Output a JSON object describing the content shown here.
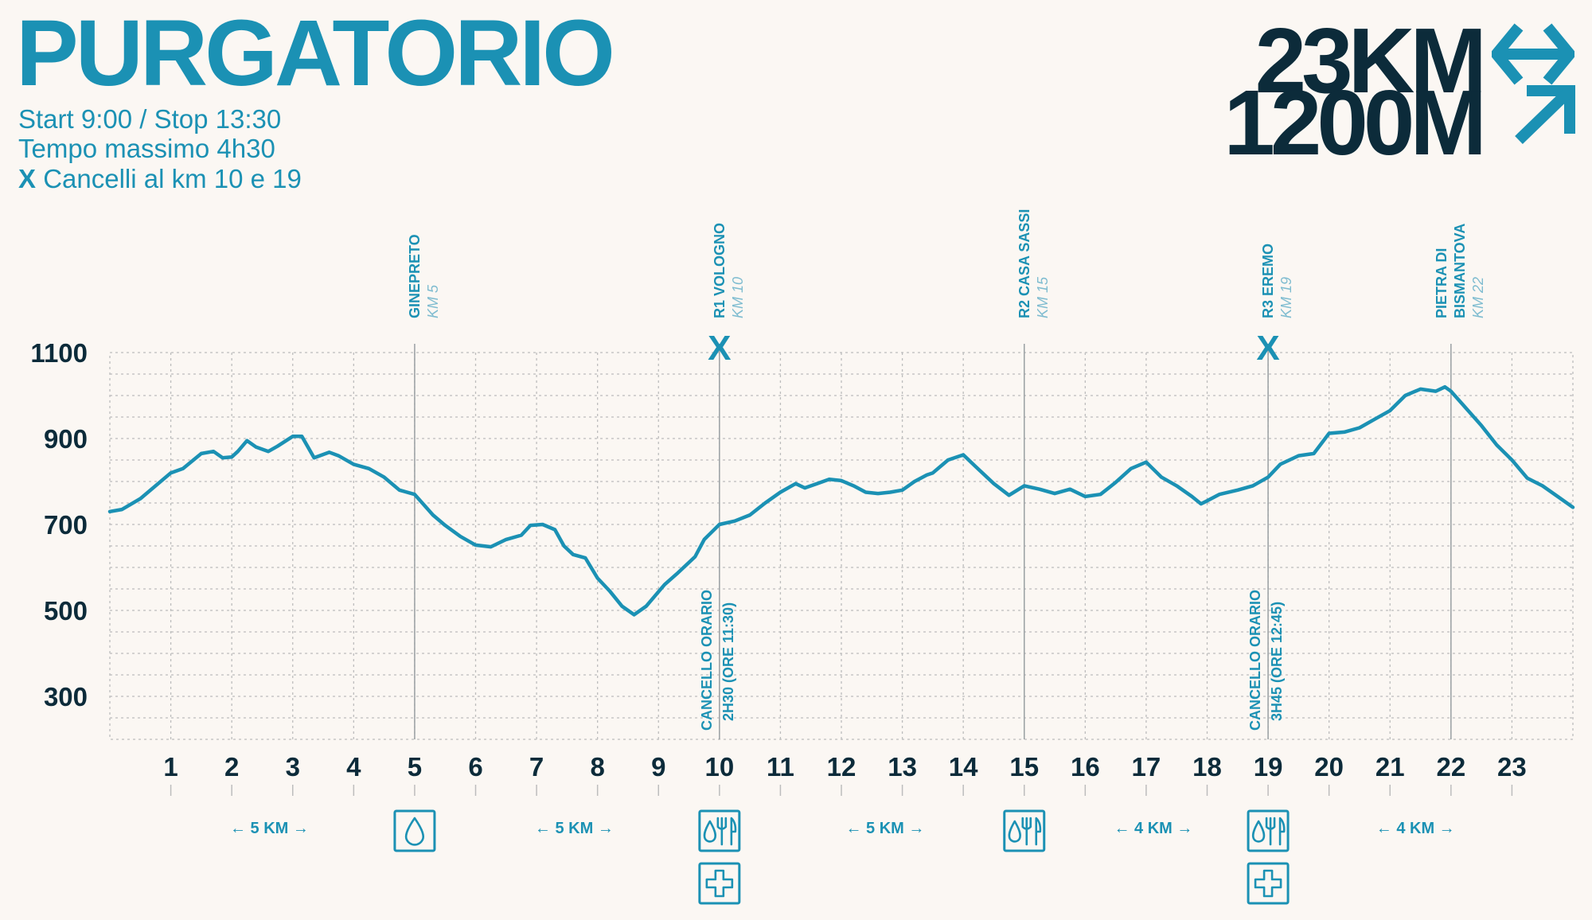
{
  "header": {
    "title": "PURGATORIO",
    "start_stop": "Start 9:00 / Stop 13:30",
    "max_time": "Tempo massimo 4h30",
    "gates_mark": "X",
    "gates_text": "Cancelli al km 10 e 19",
    "distance": "23KM",
    "elevation_gain": "1200M"
  },
  "colors": {
    "accent": "#1b91b4",
    "dark": "#0c2b3a",
    "grid": "#bdbdbd",
    "background": "#fbf7f3"
  },
  "icons": {
    "distance": "double-arrow-icon",
    "elevation": "arrow-up-right-icon"
  },
  "chart_data": {
    "type": "line",
    "title": "",
    "xlabel": "",
    "ylabel": "",
    "xlim": [
      0,
      24
    ],
    "ylim": [
      200,
      1100
    ],
    "y_ticks": [
      1100,
      900,
      700,
      500,
      300
    ],
    "x_ticks": [
      1,
      2,
      3,
      4,
      5,
      6,
      7,
      8,
      9,
      10,
      11,
      12,
      13,
      14,
      15,
      16,
      17,
      18,
      19,
      20,
      21,
      22,
      23
    ],
    "grid": true,
    "series": [
      {
        "name": "",
        "x": [
          0,
          0.2,
          0.5,
          1.0,
          1.2,
          1.5,
          1.7,
          1.85,
          2.0,
          2.1,
          2.25,
          2.4,
          2.6,
          2.75,
          3.0,
          3.15,
          3.35,
          3.6,
          3.75,
          4.0,
          4.25,
          4.5,
          4.75,
          5.0,
          5.3,
          5.5,
          5.75,
          6.0,
          6.25,
          6.5,
          6.75,
          6.9,
          7.1,
          7.3,
          7.45,
          7.6,
          7.8,
          8.0,
          8.2,
          8.4,
          8.6,
          8.8,
          9.1,
          9.3,
          9.6,
          9.75,
          10.0,
          10.25,
          10.5,
          10.75,
          11.0,
          11.25,
          11.4,
          11.6,
          11.8,
          12.0,
          12.2,
          12.4,
          12.6,
          12.8,
          13.0,
          13.2,
          13.4,
          13.5,
          13.75,
          14.0,
          14.2,
          14.5,
          14.75,
          15.0,
          15.25,
          15.5,
          15.75,
          16.0,
          16.25,
          16.5,
          16.75,
          17.0,
          17.25,
          17.5,
          17.75,
          17.9,
          18.0,
          18.2,
          18.5,
          18.75,
          19.0,
          19.2,
          19.5,
          19.75,
          20.0,
          20.25,
          20.5,
          20.75,
          21.0,
          21.25,
          21.5,
          21.75,
          21.9,
          22.0,
          22.25,
          22.5,
          22.75,
          23.0,
          23.25,
          23.5,
          23.75,
          24.0
        ],
        "values": [
          730,
          735,
          760,
          820,
          830,
          865,
          870,
          855,
          857,
          870,
          895,
          880,
          870,
          882,
          905,
          905,
          855,
          868,
          860,
          840,
          830,
          810,
          780,
          770,
          722,
          698,
          672,
          652,
          648,
          665,
          675,
          698,
          700,
          688,
          650,
          630,
          622,
          575,
          545,
          510,
          490,
          510,
          560,
          585,
          625,
          665,
          700,
          708,
          722,
          750,
          775,
          795,
          785,
          795,
          805,
          802,
          790,
          775,
          772,
          775,
          780,
          800,
          815,
          820,
          850,
          862,
          835,
          795,
          768,
          790,
          782,
          772,
          782,
          765,
          770,
          798,
          830,
          845,
          810,
          790,
          765,
          748,
          755,
          770,
          780,
          790,
          810,
          840,
          860,
          865,
          912,
          915,
          925,
          945,
          965,
          1000,
          1015,
          1010,
          1020,
          1010,
          970,
          930,
          885,
          850,
          808,
          790,
          765,
          740
        ]
      }
    ],
    "waypoints": [
      {
        "km": 5,
        "name": "GINEPRETO",
        "sub": "KM 5",
        "gate": false,
        "lines": 1
      },
      {
        "km": 10,
        "name": "R1 VOLOGNO",
        "sub": "KM 10",
        "gate": true,
        "lines": 1
      },
      {
        "km": 15,
        "name": "R2 CASA SASSI",
        "sub": "KM 15",
        "gate": false,
        "lines": 1
      },
      {
        "km": 19,
        "name": "R3 EREMO",
        "sub": "KM 19",
        "gate": true,
        "lines": 1
      },
      {
        "km": 22,
        "name": "PIETRA DI",
        "name2": "BISMANTOVA",
        "sub": "KM 22",
        "gate": false,
        "lines": 2
      }
    ],
    "gate_marker": "X",
    "gates": [
      {
        "km": 10,
        "line1": "CANCELLO ORARIO",
        "line2": "2H30 (ORE 11:30)"
      },
      {
        "km": 19,
        "line1": "CANCELLO ORARIO",
        "line2": "3H45 (ORE 12:45)"
      }
    ],
    "segments": [
      {
        "center_km": 2.5,
        "label": "← 5 KM →"
      },
      {
        "center_km": 7.5,
        "label": "← 5 KM →"
      },
      {
        "center_km": 12.6,
        "label": "← 5 KM →"
      },
      {
        "center_km": 17.0,
        "label": "← 4 KM →"
      },
      {
        "center_km": 21.3,
        "label": "← 4 KM →"
      }
    ],
    "aid_stations": [
      {
        "km": 5,
        "icons": [
          "water-icon"
        ]
      },
      {
        "km": 10,
        "icons": [
          "food-water-icon",
          "medical-cross-icon"
        ]
      },
      {
        "km": 15,
        "icons": [
          "food-water-icon"
        ]
      },
      {
        "km": 19,
        "icons": [
          "food-water-icon",
          "medical-cross-icon"
        ]
      }
    ]
  }
}
